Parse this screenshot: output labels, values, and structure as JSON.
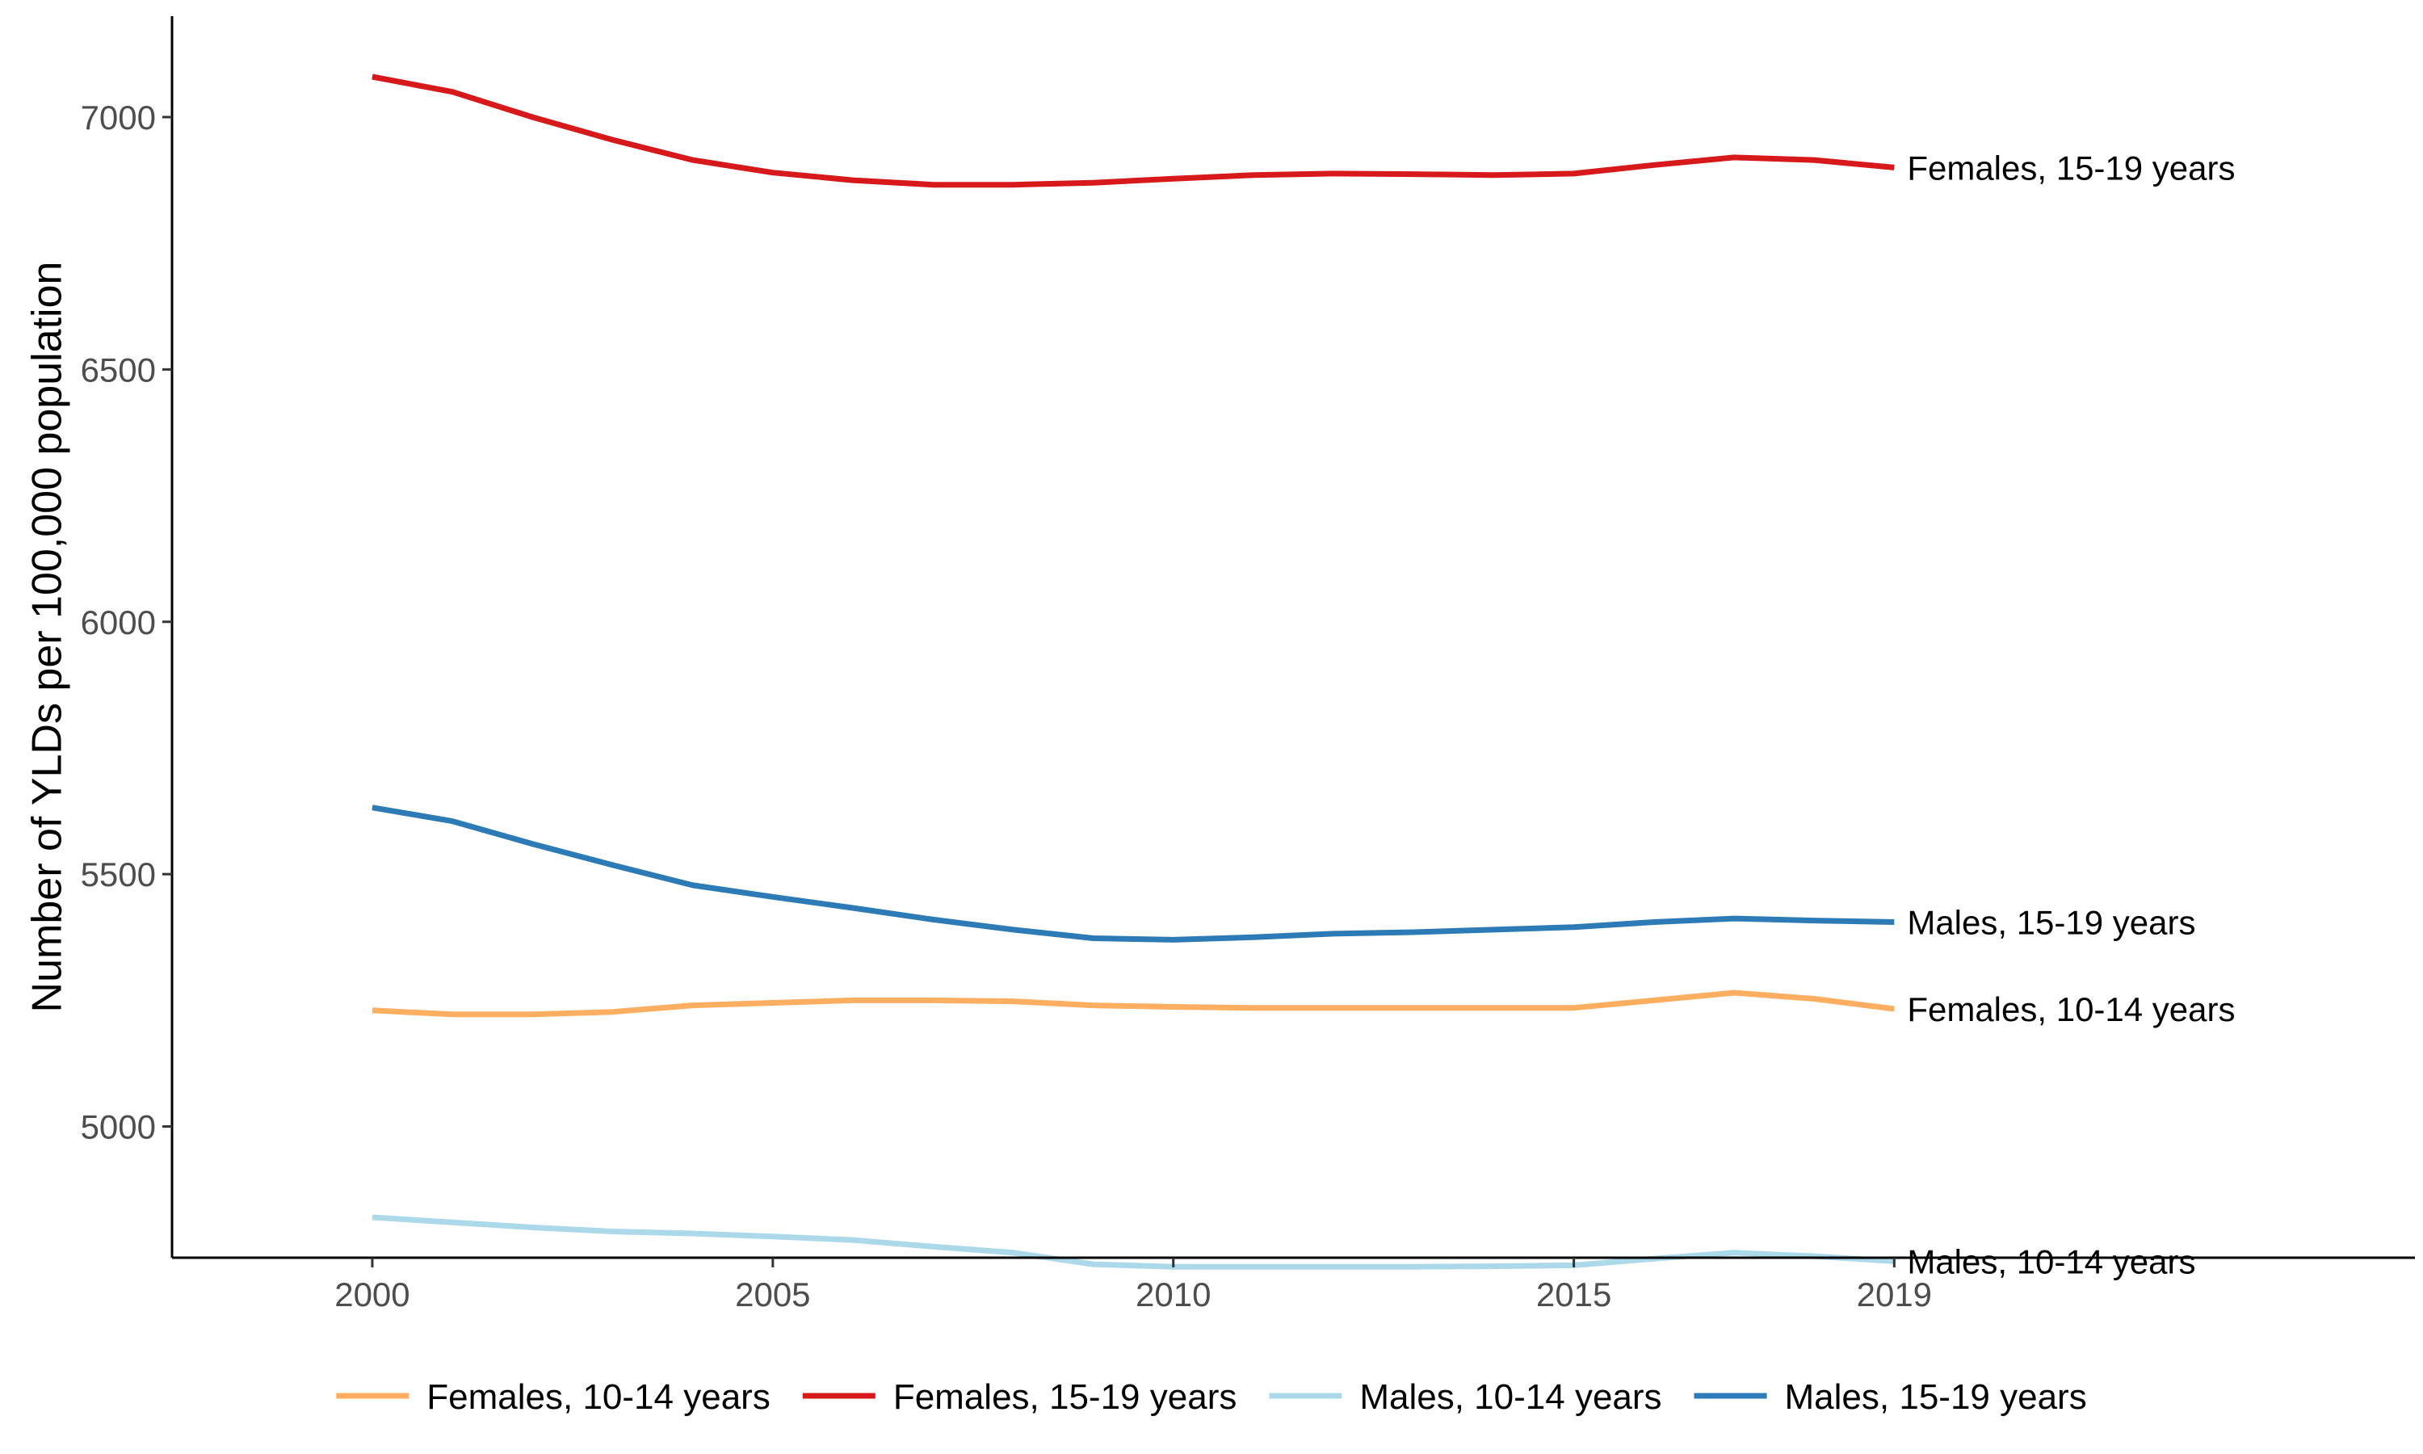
{
  "chart_data": {
    "type": "line",
    "title": "",
    "xlabel": "",
    "ylabel": "Number of YLDs per 100,000 population",
    "xlim": [
      1997.5,
      2025.5
    ],
    "ylim": [
      4740,
      7200
    ],
    "x_ticks": [
      2000,
      2005,
      2010,
      2015,
      2019
    ],
    "y_ticks": [
      5000,
      5500,
      6000,
      6500,
      7000
    ],
    "grid": false,
    "legend_position": "bottom",
    "x": [
      2000,
      2001,
      2002,
      2003,
      2004,
      2005,
      2006,
      2007,
      2008,
      2009,
      2010,
      2011,
      2012,
      2013,
      2014,
      2015,
      2016,
      2017,
      2018,
      2019
    ],
    "series": [
      {
        "name": "Females, 10-14 years",
        "color": "#fdae61",
        "values": [
          5230,
          5222,
          5222,
          5227,
          5240,
          5245,
          5250,
          5250,
          5248,
          5240,
          5237,
          5235,
          5235,
          5235,
          5235,
          5235,
          5250,
          5265,
          5253,
          5233
        ]
      },
      {
        "name": "Females, 15-19 years",
        "color": "#d7191c",
        "values": [
          7080,
          7050,
          7000,
          6955,
          6915,
          6890,
          6875,
          6866,
          6866,
          6870,
          6878,
          6885,
          6888,
          6887,
          6885,
          6888,
          6905,
          6920,
          6915,
          6900
        ]
      },
      {
        "name": "Males, 10-14 years",
        "color": "#abd9e9",
        "values": [
          4820,
          4810,
          4800,
          4792,
          4788,
          4782,
          4775,
          4762,
          4750,
          4727,
          4722,
          4722,
          4722,
          4722,
          4723,
          4725,
          4738,
          4750,
          4743,
          4733
        ]
      },
      {
        "name": "Males, 15-19 years",
        "color": "#2c7bb6",
        "values": [
          5632,
          5605,
          5560,
          5518,
          5478,
          5455,
          5433,
          5410,
          5390,
          5373,
          5370,
          5375,
          5382,
          5385,
          5390,
          5395,
          5405,
          5412,
          5408,
          5405
        ]
      }
    ],
    "end_labels": [
      {
        "series_index": 1,
        "text": "Females, 15-19 years"
      },
      {
        "series_index": 3,
        "text": "Males, 15-19 years"
      },
      {
        "series_index": 0,
        "text": "Females, 10-14 years"
      },
      {
        "series_index": 2,
        "text": "Males, 10-14 years"
      }
    ]
  }
}
